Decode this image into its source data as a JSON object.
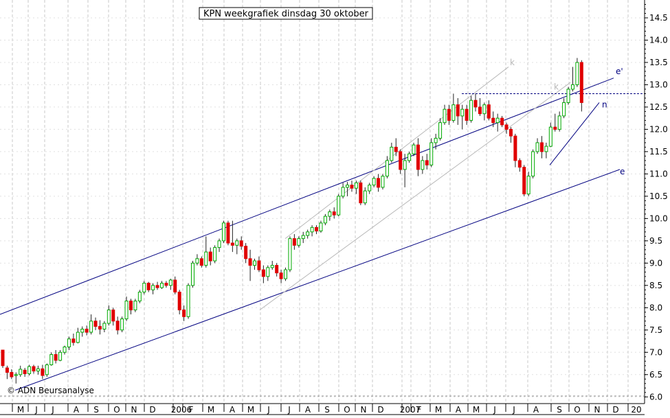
{
  "chart_data": {
    "type": "candlestick",
    "title": "KPN weekgrafiek dinsdag 30 oktober",
    "credit": "© ADN Beursanalyse",
    "ylim": [
      5.85,
      14.9
    ],
    "y_ticks": [
      "6.0",
      "6.5",
      "7.0",
      "7.5",
      "8.0",
      "8.5",
      "9.0",
      "9.5",
      "10.0",
      "10.5",
      "11.0",
      "11.5",
      "12.0",
      "12.5",
      "13.0",
      "13.5",
      "14.0",
      "14.5"
    ],
    "x_labels": [
      "M",
      "J",
      "J",
      "A",
      "S",
      "O",
      "N",
      "D",
      "2006",
      "F",
      "M",
      "A",
      "M",
      "J",
      "J",
      "A",
      "S",
      "O",
      "N",
      "D",
      "2007",
      "F",
      "M",
      "A",
      "M",
      "J",
      "J",
      "A",
      "S",
      "O",
      "N",
      "D",
      "20"
    ],
    "up_color": "#00aa00",
    "down_color": "#e00000",
    "grid": true,
    "resistance_level": 12.8,
    "line_labels": [
      "e'",
      "e",
      "n",
      "k",
      "k"
    ],
    "candles": [
      [
        7.05,
        7.05,
        6.65,
        6.7
      ],
      [
        6.65,
        6.7,
        6.4,
        6.55
      ],
      [
        6.55,
        6.62,
        6.4,
        6.45
      ],
      [
        6.48,
        6.55,
        6.3,
        6.5
      ],
      [
        6.5,
        6.7,
        6.45,
        6.62
      ],
      [
        6.6,
        6.65,
        6.45,
        6.52
      ],
      [
        6.52,
        6.72,
        6.48,
        6.68
      ],
      [
        6.68,
        6.72,
        6.52,
        6.58
      ],
      [
        6.58,
        6.7,
        6.5,
        6.63
      ],
      [
        6.63,
        6.72,
        6.4,
        6.48
      ],
      [
        6.5,
        6.75,
        6.45,
        6.72
      ],
      [
        6.72,
        7.0,
        6.7,
        6.95
      ],
      [
        6.95,
        7.05,
        6.75,
        6.82
      ],
      [
        6.82,
        7.05,
        6.8,
        7.0
      ],
      [
        7.0,
        7.15,
        6.95,
        7.12
      ],
      [
        7.12,
        7.35,
        7.05,
        7.3
      ],
      [
        7.3,
        7.42,
        7.15,
        7.22
      ],
      [
        7.22,
        7.55,
        7.2,
        7.45
      ],
      [
        7.45,
        7.58,
        7.35,
        7.52
      ],
      [
        7.52,
        7.6,
        7.38,
        7.45
      ],
      [
        7.45,
        7.85,
        7.4,
        7.7
      ],
      [
        7.7,
        7.78,
        7.5,
        7.58
      ],
      [
        7.58,
        7.72,
        7.4,
        7.52
      ],
      [
        7.52,
        7.7,
        7.45,
        7.65
      ],
      [
        7.65,
        8.05,
        7.6,
        7.95
      ],
      [
        7.95,
        8.0,
        7.6,
        7.7
      ],
      [
        7.7,
        7.8,
        7.4,
        7.5
      ],
      [
        7.5,
        7.8,
        7.45,
        7.75
      ],
      [
        7.75,
        8.25,
        7.7,
        8.15
      ],
      [
        8.15,
        8.2,
        7.85,
        7.95
      ],
      [
        7.95,
        8.2,
        7.9,
        8.15
      ],
      [
        8.15,
        8.4,
        8.1,
        8.35
      ],
      [
        8.35,
        8.6,
        8.3,
        8.55
      ],
      [
        8.55,
        8.58,
        8.35,
        8.4
      ],
      [
        8.4,
        8.55,
        8.3,
        8.5
      ],
      [
        8.5,
        8.58,
        8.4,
        8.45
      ],
      [
        8.45,
        8.6,
        8.42,
        8.55
      ],
      [
        8.55,
        8.6,
        8.45,
        8.5
      ],
      [
        8.5,
        8.65,
        8.4,
        8.62
      ],
      [
        8.62,
        8.7,
        8.3,
        8.35
      ],
      [
        8.35,
        8.4,
        7.85,
        7.95
      ],
      [
        7.95,
        8.05,
        7.7,
        7.8
      ],
      [
        7.8,
        8.55,
        7.75,
        8.5
      ],
      [
        8.5,
        9.05,
        8.45,
        9.0
      ],
      [
        9.0,
        9.2,
        8.95,
        9.1
      ],
      [
        9.1,
        9.15,
        8.9,
        8.95
      ],
      [
        8.95,
        9.6,
        8.9,
        9.25
      ],
      [
        9.25,
        9.35,
        8.95,
        9.05
      ],
      [
        9.05,
        9.4,
        9.0,
        9.35
      ],
      [
        9.35,
        9.55,
        9.25,
        9.5
      ],
      [
        9.5,
        9.95,
        9.45,
        9.9
      ],
      [
        9.9,
        9.95,
        9.4,
        9.45
      ],
      [
        9.45,
        9.95,
        9.25,
        9.4
      ],
      [
        9.4,
        9.55,
        9.2,
        9.5
      ],
      [
        9.5,
        9.6,
        9.3,
        9.38
      ],
      [
        9.38,
        9.45,
        9.0,
        9.1
      ],
      [
        9.1,
        9.3,
        8.6,
        8.95
      ],
      [
        8.95,
        9.1,
        8.85,
        9.05
      ],
      [
        9.05,
        9.15,
        8.8,
        8.85
      ],
      [
        8.85,
        8.95,
        8.55,
        8.7
      ],
      [
        8.7,
        8.95,
        8.6,
        8.9
      ],
      [
        8.9,
        9.05,
        8.85,
        8.95
      ],
      [
        8.95,
        9.0,
        8.7,
        8.78
      ],
      [
        8.78,
        8.85,
        8.55,
        8.65
      ],
      [
        8.65,
        8.9,
        8.6,
        8.85
      ],
      [
        8.85,
        9.6,
        8.8,
        9.55
      ],
      [
        9.55,
        9.65,
        9.3,
        9.4
      ],
      [
        9.4,
        9.6,
        9.35,
        9.55
      ],
      [
        9.55,
        9.7,
        9.45,
        9.62
      ],
      [
        9.62,
        9.75,
        9.55,
        9.7
      ],
      [
        9.7,
        9.85,
        9.6,
        9.8
      ],
      [
        9.8,
        9.85,
        9.65,
        9.72
      ],
      [
        9.72,
        9.95,
        9.68,
        9.9
      ],
      [
        9.9,
        10.1,
        9.85,
        10.05
      ],
      [
        10.05,
        10.2,
        9.95,
        10.15
      ],
      [
        10.15,
        10.25,
        10.0,
        10.08
      ],
      [
        10.08,
        10.55,
        10.05,
        10.5
      ],
      [
        10.5,
        10.8,
        10.45,
        10.7
      ],
      [
        10.7,
        10.82,
        10.5,
        10.75
      ],
      [
        10.75,
        10.85,
        10.6,
        10.68
      ],
      [
        10.68,
        10.85,
        10.55,
        10.8
      ],
      [
        10.8,
        10.85,
        10.3,
        10.35
      ],
      [
        10.35,
        10.7,
        10.3,
        10.62
      ],
      [
        10.62,
        10.8,
        10.55,
        10.75
      ],
      [
        10.75,
        10.95,
        10.7,
        10.9
      ],
      [
        10.9,
        11.0,
        10.6,
        10.7
      ],
      [
        10.7,
        11.0,
        10.65,
        10.95
      ],
      [
        10.95,
        11.4,
        10.9,
        11.3
      ],
      [
        11.3,
        11.7,
        11.25,
        11.6
      ],
      [
        11.6,
        11.8,
        11.4,
        11.5
      ],
      [
        11.5,
        11.55,
        11.0,
        11.1
      ],
      [
        11.1,
        11.45,
        10.7,
        11.3
      ],
      [
        11.3,
        11.5,
        11.25,
        11.45
      ],
      [
        11.45,
        11.7,
        11.4,
        11.65
      ],
      [
        11.65,
        11.8,
        10.95,
        11.1
      ],
      [
        11.1,
        11.4,
        11.0,
        11.3
      ],
      [
        11.3,
        11.45,
        11.1,
        11.2
      ],
      [
        11.2,
        11.8,
        11.15,
        11.7
      ],
      [
        11.7,
        11.9,
        11.55,
        11.8
      ],
      [
        11.8,
        12.25,
        11.75,
        12.15
      ],
      [
        12.15,
        12.55,
        12.1,
        12.45
      ],
      [
        12.45,
        12.55,
        12.1,
        12.2
      ],
      [
        12.2,
        12.8,
        12.15,
        12.55
      ],
      [
        12.55,
        12.7,
        12.1,
        12.3
      ],
      [
        12.3,
        12.55,
        12.0,
        12.45
      ],
      [
        12.45,
        12.55,
        12.1,
        12.2
      ],
      [
        12.2,
        12.75,
        12.15,
        12.65
      ],
      [
        12.65,
        12.8,
        12.4,
        12.5
      ],
      [
        12.5,
        12.7,
        12.3,
        12.35
      ],
      [
        12.35,
        12.6,
        12.2,
        12.55
      ],
      [
        12.55,
        12.65,
        12.2,
        12.25
      ],
      [
        12.25,
        12.4,
        12.05,
        12.15
      ],
      [
        12.15,
        12.35,
        11.95,
        12.25
      ],
      [
        12.25,
        12.3,
        12.05,
        12.1
      ],
      [
        12.1,
        12.15,
        11.9,
        12.0
      ],
      [
        12.0,
        12.05,
        11.7,
        11.85
      ],
      [
        11.85,
        11.9,
        11.15,
        11.3
      ],
      [
        11.3,
        11.35,
        11.05,
        11.15
      ],
      [
        11.15,
        11.2,
        10.5,
        10.55
      ],
      [
        10.55,
        11.05,
        10.5,
        10.95
      ],
      [
        10.95,
        11.55,
        10.9,
        11.5
      ],
      [
        11.5,
        11.8,
        11.45,
        11.7
      ],
      [
        11.7,
        11.85,
        11.35,
        11.5
      ],
      [
        11.5,
        11.7,
        11.35,
        11.62
      ],
      [
        11.62,
        12.15,
        11.6,
        12.05
      ],
      [
        12.05,
        12.35,
        11.95,
        12.0
      ],
      [
        12.0,
        12.4,
        11.95,
        12.3
      ],
      [
        12.3,
        12.7,
        12.25,
        12.6
      ],
      [
        12.6,
        12.95,
        12.55,
        12.9
      ],
      [
        12.9,
        13.4,
        12.85,
        13.0
      ],
      [
        13.0,
        13.6,
        12.95,
        13.5
      ],
      [
        13.5,
        13.55,
        12.4,
        12.6
      ]
    ]
  }
}
